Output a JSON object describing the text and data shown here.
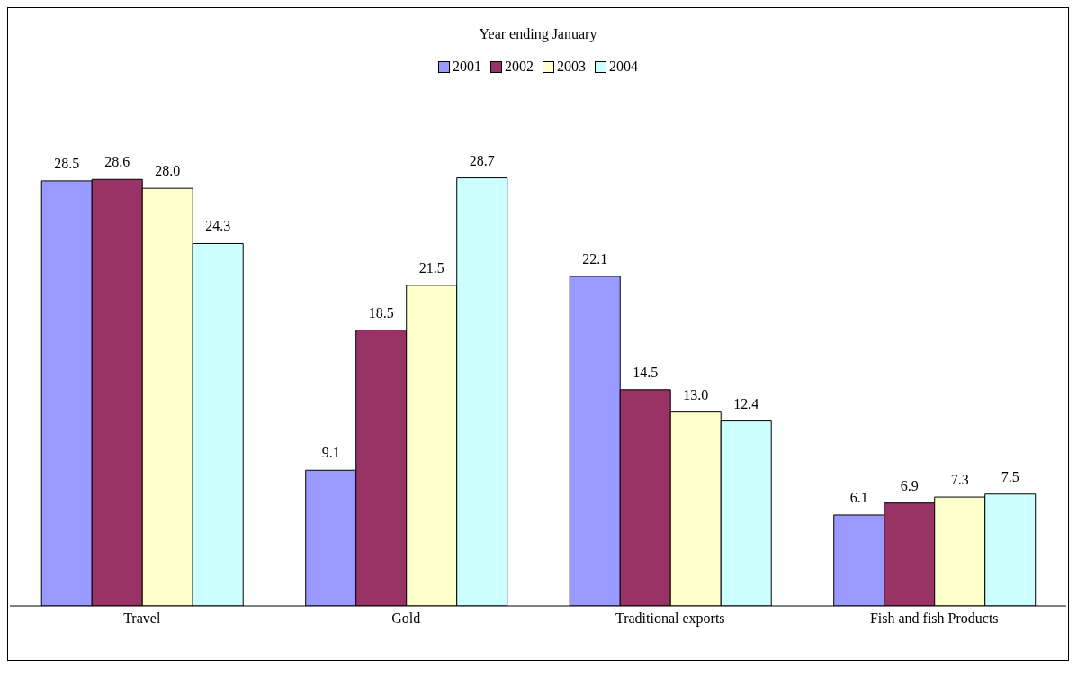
{
  "chart_data": {
    "type": "bar",
    "legend_title": "Year ending January",
    "categories": [
      "Travel",
      "Gold",
      "Traditional exports",
      "Fish and fish Products"
    ],
    "series": [
      {
        "name": "2001",
        "color": "#9999ff",
        "values": [
          28.5,
          9.1,
          22.1,
          6.1
        ],
        "value_labels": [
          "28.5",
          "9.1",
          "22.1",
          "6.1"
        ]
      },
      {
        "name": "2002",
        "color": "#993366",
        "values": [
          28.6,
          18.5,
          14.5,
          6.9
        ],
        "value_labels": [
          "28.6",
          "18.5",
          "14.5",
          "6.9"
        ]
      },
      {
        "name": "2003",
        "color": "#ffffcc",
        "values": [
          28.0,
          21.5,
          13.0,
          7.3
        ],
        "value_labels": [
          "28.0",
          "21.5",
          "13.0",
          "7.3"
        ]
      },
      {
        "name": "2004",
        "color": "#ccffff",
        "values": [
          24.3,
          28.7,
          12.4,
          7.5
        ],
        "value_labels": [
          "24.3",
          "28.7",
          "12.4",
          "7.5"
        ]
      }
    ],
    "legend": "top",
    "grid": false
  }
}
